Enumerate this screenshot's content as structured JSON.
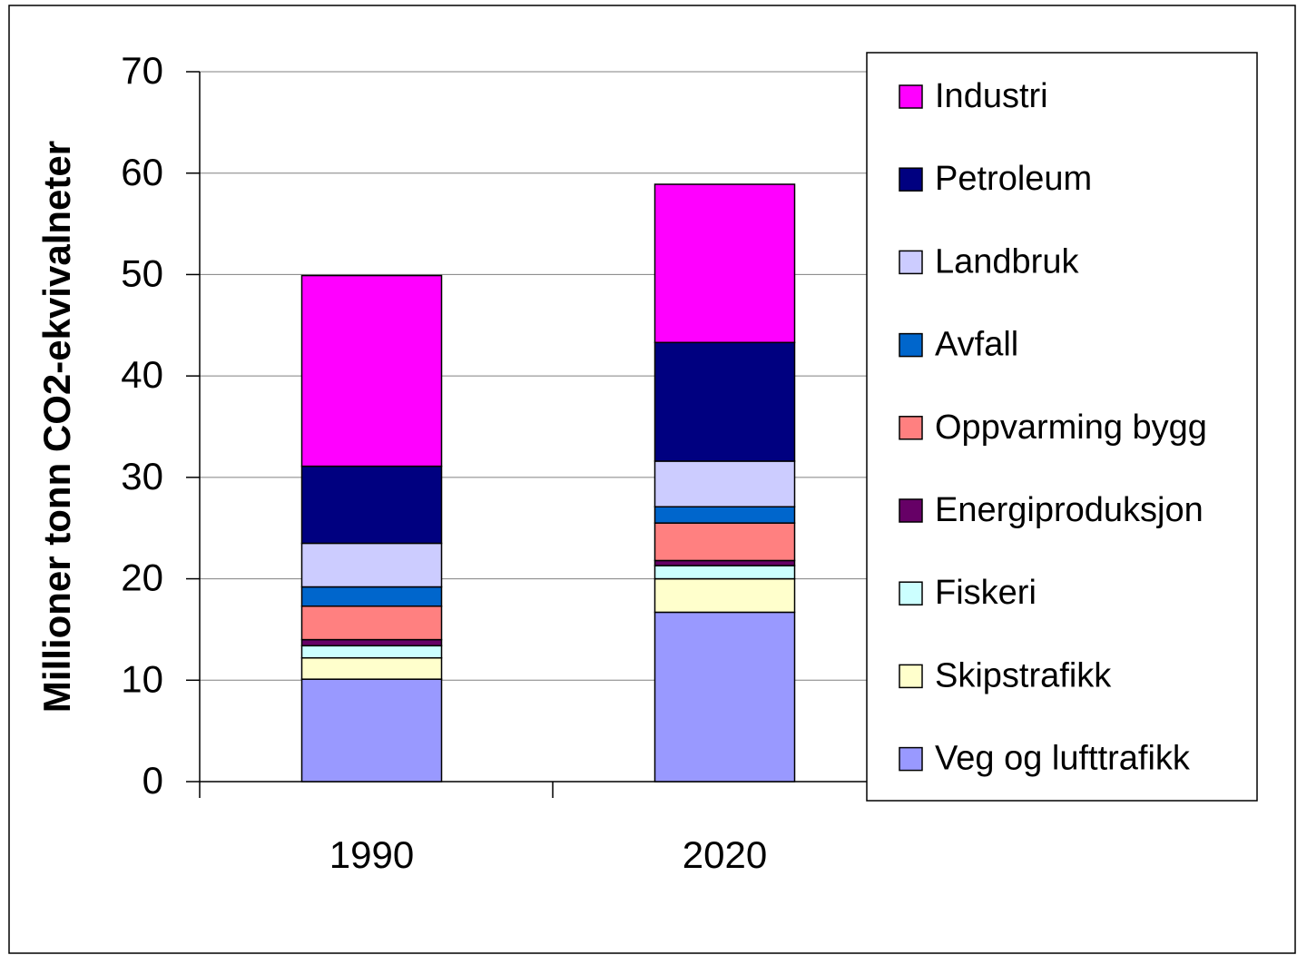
{
  "chart_data": {
    "type": "stacked_bar",
    "y_label": "Millioner tonn CO2-ekvivalneter",
    "categories": [
      "1990",
      "2020"
    ],
    "series": [
      {
        "name": "Veg og lufttrafikk",
        "color": "#9999ff",
        "values": [
          10.1,
          16.7
        ]
      },
      {
        "name": "Skipstrafikk",
        "color": "#ffffcc",
        "values": [
          2.1,
          3.3
        ]
      },
      {
        "name": "Fiskeri",
        "color": "#ccffff",
        "values": [
          1.2,
          1.3
        ]
      },
      {
        "name": "Energiproduksjon",
        "color": "#660066",
        "values": [
          0.6,
          0.5
        ]
      },
      {
        "name": "Oppvarming bygg",
        "color": "#ff8080",
        "values": [
          3.3,
          3.7
        ]
      },
      {
        "name": "Avfall",
        "color": "#0066cc",
        "values": [
          1.9,
          1.6
        ]
      },
      {
        "name": "Landbruk",
        "color": "#ccccff",
        "values": [
          4.3,
          4.5
        ]
      },
      {
        "name": "Petroleum",
        "color": "#000080",
        "values": [
          7.6,
          11.7
        ]
      },
      {
        "name": "Industri",
        "color": "#ff00ff",
        "values": [
          18.8,
          15.6
        ]
      }
    ],
    "ylim": [
      0,
      70
    ],
    "yticks": [
      0,
      10,
      20,
      30,
      40,
      50,
      60,
      70
    ],
    "grid": true
  }
}
